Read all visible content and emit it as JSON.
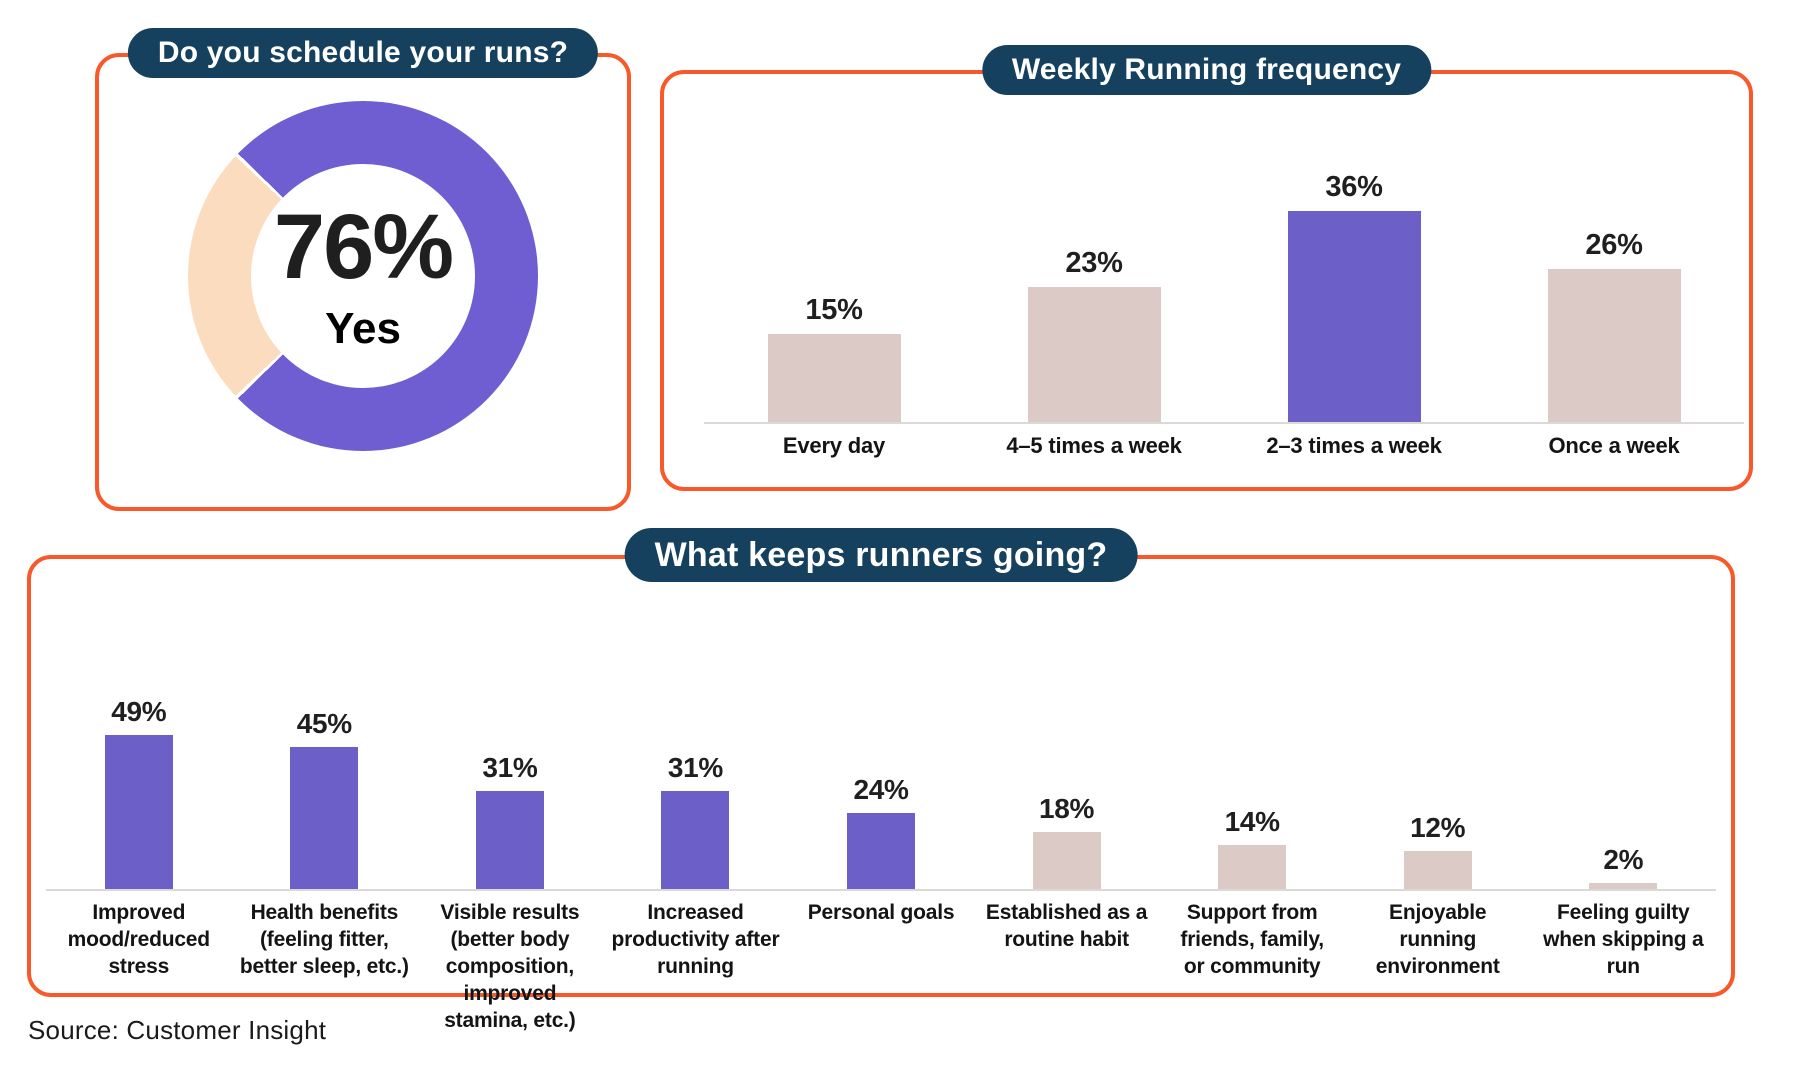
{
  "source_text": "Source: Customer Insight",
  "colors": {
    "accent_orange": "#f7592b",
    "navy_pill": "#15405e",
    "purple": "#6c5fc7",
    "donut_purple": "#6f5ed1",
    "peach": "#fcdcbf",
    "pink": "#dbcac6",
    "label_text": "#1f1f1f",
    "axis_line": "#dcd8d6"
  },
  "chart_data": [
    {
      "type": "pie",
      "donut": true,
      "title": "Do you schedule your runs?",
      "slices": [
        {
          "label": "Yes",
          "value": 76
        },
        {
          "label": "No",
          "value": 24
        }
      ],
      "center_label": "76%",
      "center_sublabel": "Yes",
      "legend_position": "none"
    },
    {
      "type": "bar",
      "title": "Weekly Running frequency",
      "categories": [
        "Every day",
        "4–5 times a week",
        "2–3 times a week",
        "Once a week"
      ],
      "values": [
        15,
        23,
        36,
        26
      ],
      "value_suffix": "%",
      "highlight_indices": [
        2
      ],
      "ylim": [
        0,
        40
      ],
      "grid": false,
      "data_labels": "above-bars"
    },
    {
      "type": "bar",
      "title": "What keeps runners going?",
      "categories": [
        "Improved mood/reduced stress",
        "Health benefits (feeling fitter, better sleep, etc.)",
        "Visible results (better body composition, improved stamina, etc.)",
        "Increased productivity after running",
        "Personal goals",
        "Established as a routine habit",
        "Support from friends, family, or community",
        "Enjoyable running environment",
        "Feeling guilty when skipping a run"
      ],
      "values": [
        49,
        45,
        31,
        31,
        24,
        18,
        14,
        12,
        2
      ],
      "value_suffix": "%",
      "highlight_indices": [
        0,
        1,
        2,
        3,
        4
      ],
      "ylim": [
        0,
        60
      ],
      "grid": false,
      "data_labels": "above-bars"
    }
  ]
}
